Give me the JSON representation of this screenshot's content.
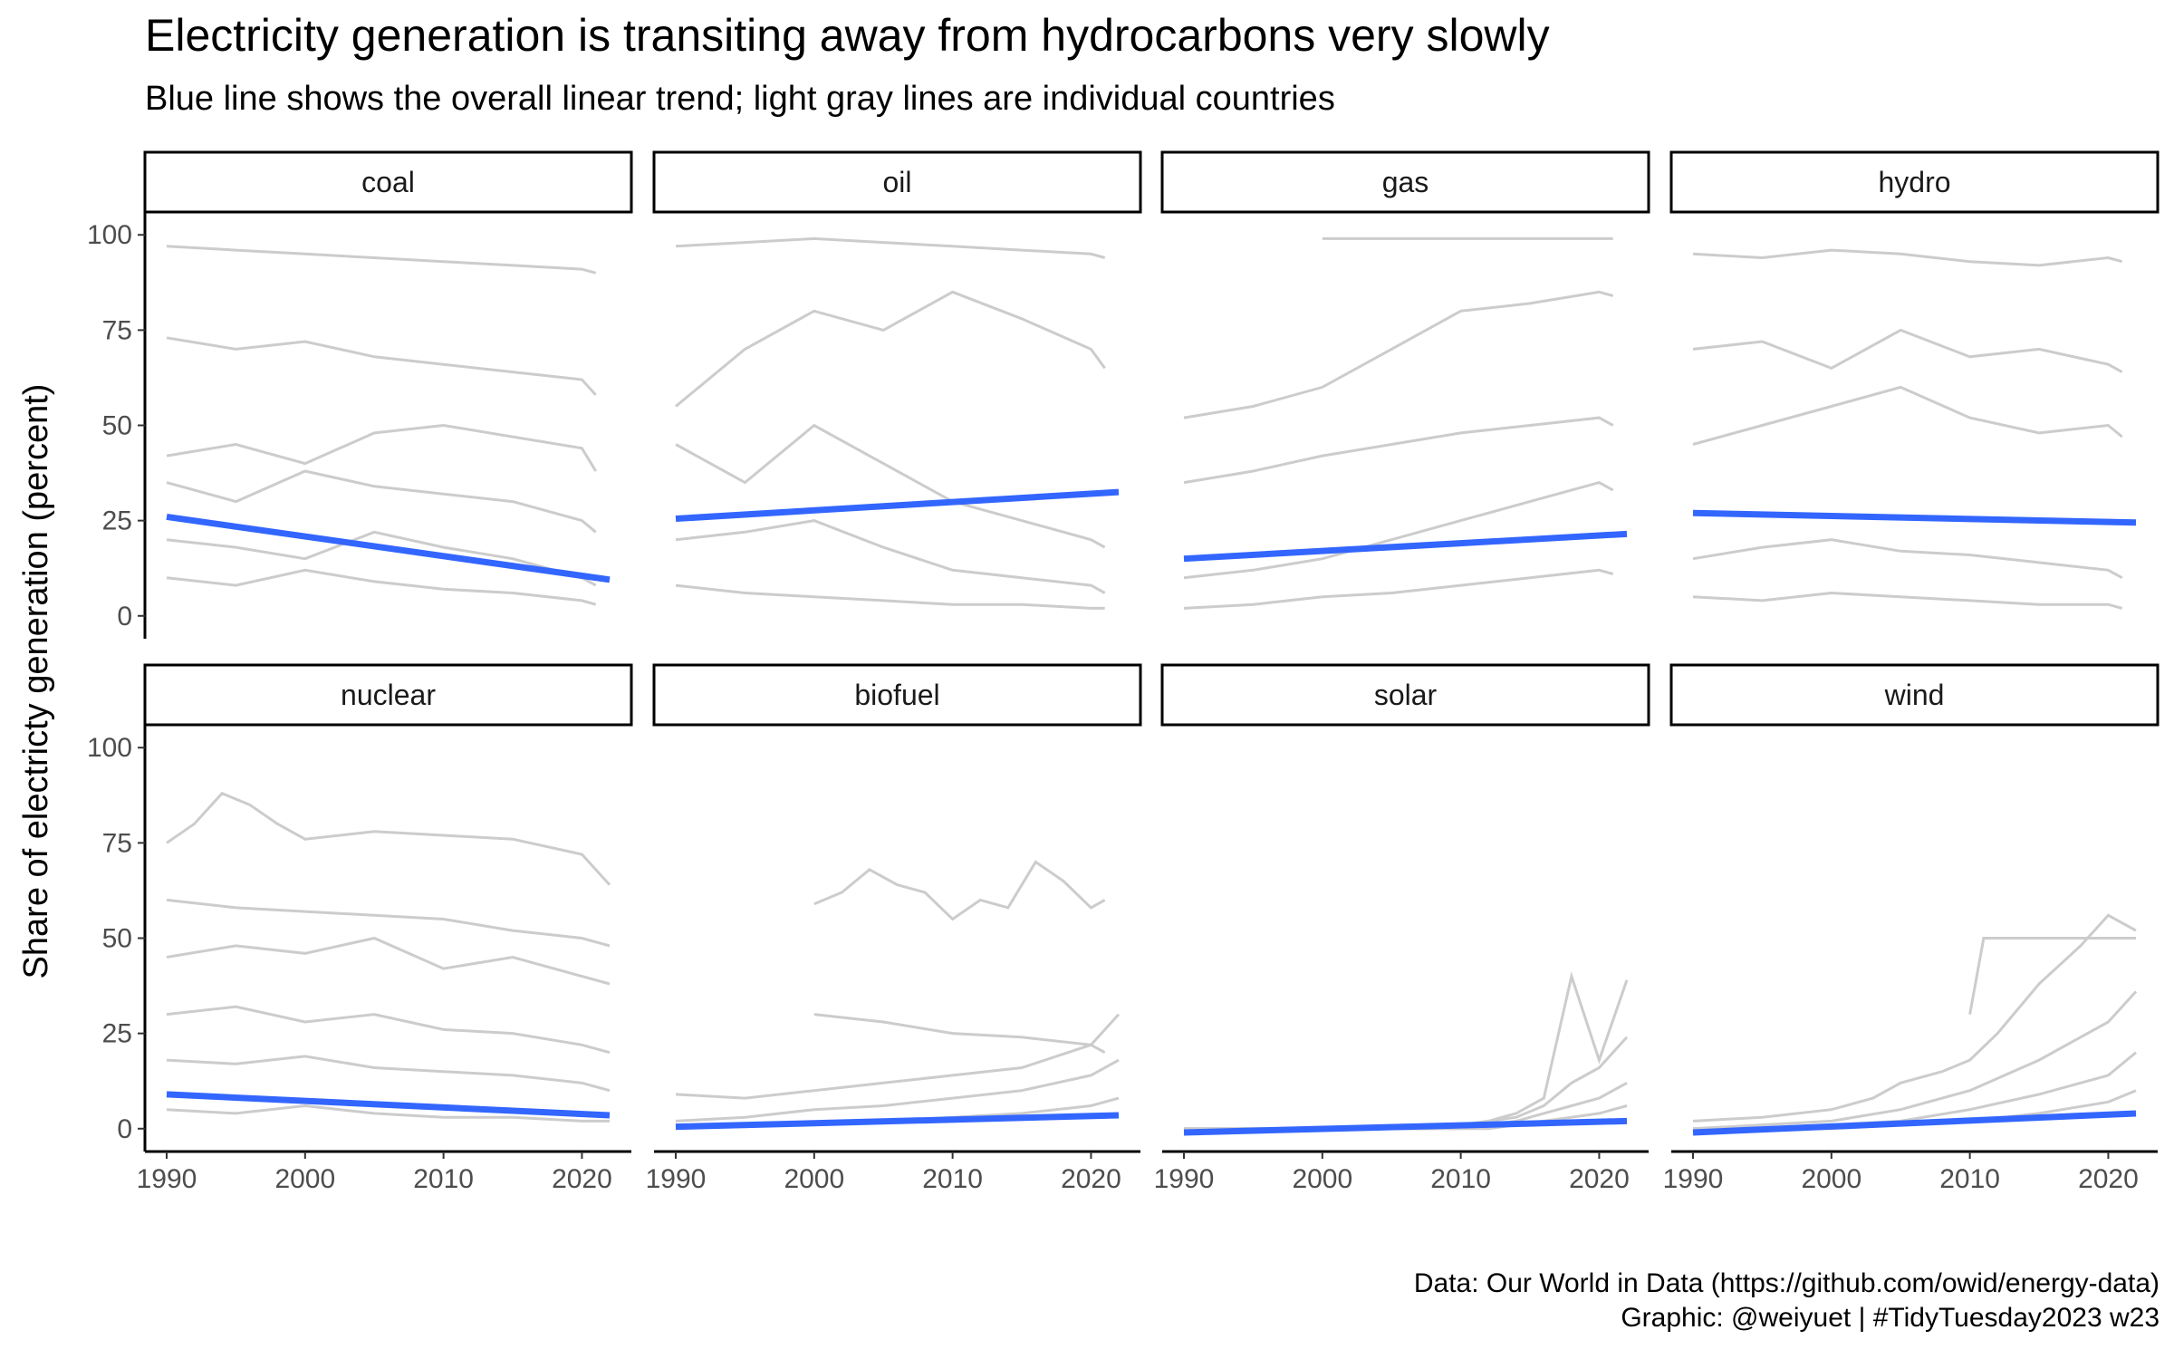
{
  "chart_data": {
    "type": "line",
    "title": "Electricity generation is transiting away from hydrocarbons very slowly",
    "subtitle": "Blue line shows the overall linear trend; light gray lines are individual countries",
    "ylabel": "Share of electricty generation (percent)",
    "xlim": [
      1990,
      2022
    ],
    "ylim": [
      0,
      100
    ],
    "x_ticks": [
      1990,
      2000,
      2010,
      2020
    ],
    "y_ticks": [
      0,
      25,
      50,
      75,
      100
    ],
    "colors": {
      "trend": "#3366FF",
      "country": "#CCCCCC",
      "strip_border": "#000000"
    },
    "panels": [
      {
        "name": "coal",
        "trend": {
          "x": [
            1990,
            2022
          ],
          "y": [
            26,
            9.5
          ]
        },
        "sample_series": [
          {
            "x": [
              1990,
              1995,
              2000,
              2005,
              2010,
              2015,
              2020,
              2021
            ],
            "y": [
              97,
              96,
              95,
              94,
              93,
              92,
              91,
              90
            ]
          },
          {
            "x": [
              1990,
              1995,
              2000,
              2005,
              2010,
              2015,
              2020,
              2021
            ],
            "y": [
              73,
              70,
              72,
              68,
              66,
              64,
              62,
              58
            ]
          },
          {
            "x": [
              1990,
              1995,
              2000,
              2005,
              2010,
              2015,
              2020,
              2021
            ],
            "y": [
              42,
              45,
              40,
              48,
              50,
              47,
              44,
              38
            ]
          },
          {
            "x": [
              1990,
              1995,
              2000,
              2005,
              2010,
              2015,
              2020,
              2021
            ],
            "y": [
              35,
              30,
              38,
              34,
              32,
              30,
              25,
              22
            ]
          },
          {
            "x": [
              1990,
              1995,
              2000,
              2005,
              2010,
              2015,
              2020,
              2021
            ],
            "y": [
              20,
              18,
              15,
              22,
              18,
              15,
              10,
              8
            ]
          },
          {
            "x": [
              1990,
              1995,
              2000,
              2005,
              2010,
              2015,
              2020,
              2021
            ],
            "y": [
              10,
              8,
              12,
              9,
              7,
              6,
              4,
              3
            ]
          }
        ]
      },
      {
        "name": "oil",
        "trend": {
          "x": [
            1990,
            2022
          ],
          "y": [
            25.5,
            32.5
          ]
        },
        "sample_series": [
          {
            "x": [
              1990,
              1995,
              2000,
              2005,
              2010,
              2015,
              2020,
              2021
            ],
            "y": [
              97,
              98,
              99,
              98,
              97,
              96,
              95,
              94
            ]
          },
          {
            "x": [
              1990,
              1995,
              2000,
              2005,
              2010,
              2015,
              2020,
              2021
            ],
            "y": [
              55,
              70,
              80,
              75,
              85,
              78,
              70,
              65
            ]
          },
          {
            "x": [
              1990,
              1995,
              2000,
              2005,
              2010,
              2015,
              2020,
              2021
            ],
            "y": [
              45,
              35,
              50,
              40,
              30,
              25,
              20,
              18
            ]
          },
          {
            "x": [
              1990,
              1995,
              2000,
              2005,
              2010,
              2015,
              2020,
              2021
            ],
            "y": [
              20,
              22,
              25,
              18,
              12,
              10,
              8,
              6
            ]
          },
          {
            "x": [
              1990,
              1995,
              2000,
              2005,
              2010,
              2015,
              2020,
              2021
            ],
            "y": [
              8,
              6,
              5,
              4,
              3,
              3,
              2,
              2
            ]
          }
        ]
      },
      {
        "name": "gas",
        "trend": {
          "x": [
            1990,
            2022
          ],
          "y": [
            15,
            21.5
          ]
        },
        "sample_series": [
          {
            "x": [
              2000,
              2005,
              2010,
              2015,
              2020,
              2021
            ],
            "y": [
              99,
              99,
              99,
              99,
              99,
              99
            ]
          },
          {
            "x": [
              1990,
              1995,
              2000,
              2005,
              2010,
              2015,
              2020,
              2021
            ],
            "y": [
              52,
              55,
              60,
              70,
              80,
              82,
              85,
              84
            ]
          },
          {
            "x": [
              1990,
              1995,
              2000,
              2005,
              2010,
              2015,
              2020,
              2021
            ],
            "y": [
              35,
              38,
              42,
              45,
              48,
              50,
              52,
              50
            ]
          },
          {
            "x": [
              1990,
              1995,
              2000,
              2005,
              2010,
              2015,
              2020,
              2021
            ],
            "y": [
              10,
              12,
              15,
              20,
              25,
              30,
              35,
              33
            ]
          },
          {
            "x": [
              1990,
              1995,
              2000,
              2005,
              2010,
              2015,
              2020,
              2021
            ],
            "y": [
              2,
              3,
              5,
              6,
              8,
              10,
              12,
              11
            ]
          }
        ]
      },
      {
        "name": "hydro",
        "trend": {
          "x": [
            1990,
            2022
          ],
          "y": [
            27,
            24.5
          ]
        },
        "sample_series": [
          {
            "x": [
              1990,
              1995,
              2000,
              2005,
              2010,
              2015,
              2020,
              2021
            ],
            "y": [
              95,
              94,
              96,
              95,
              93,
              92,
              94,
              93
            ]
          },
          {
            "x": [
              1990,
              1995,
              2000,
              2005,
              2010,
              2015,
              2020,
              2021
            ],
            "y": [
              70,
              72,
              65,
              75,
              68,
              70,
              66,
              64
            ]
          },
          {
            "x": [
              1990,
              1995,
              2000,
              2005,
              2010,
              2015,
              2020,
              2021
            ],
            "y": [
              45,
              50,
              55,
              60,
              52,
              48,
              50,
              47
            ]
          },
          {
            "x": [
              1990,
              1995,
              2000,
              2005,
              2010,
              2015,
              2020,
              2021
            ],
            "y": [
              15,
              18,
              20,
              17,
              16,
              14,
              12,
              10
            ]
          },
          {
            "x": [
              1990,
              1995,
              2000,
              2005,
              2010,
              2015,
              2020,
              2021
            ],
            "y": [
              5,
              4,
              6,
              5,
              4,
              3,
              3,
              2
            ]
          }
        ]
      },
      {
        "name": "nuclear",
        "trend": {
          "x": [
            1990,
            2022
          ],
          "y": [
            9,
            3.5
          ]
        },
        "sample_series": [
          {
            "x": [
              1990,
              1992,
              1994,
              1996,
              1998,
              2000,
              2005,
              2010,
              2015,
              2020,
              2022
            ],
            "y": [
              75,
              80,
              88,
              85,
              80,
              76,
              78,
              77,
              76,
              72,
              64
            ]
          },
          {
            "x": [
              1990,
              1995,
              2000,
              2005,
              2010,
              2015,
              2020,
              2022
            ],
            "y": [
              60,
              58,
              57,
              56,
              55,
              52,
              50,
              48
            ]
          },
          {
            "x": [
              1990,
              1995,
              2000,
              2005,
              2010,
              2015,
              2020,
              2022
            ],
            "y": [
              45,
              48,
              46,
              50,
              42,
              45,
              40,
              38
            ]
          },
          {
            "x": [
              1990,
              1995,
              2000,
              2005,
              2010,
              2015,
              2020,
              2022
            ],
            "y": [
              30,
              32,
              28,
              30,
              26,
              25,
              22,
              20
            ]
          },
          {
            "x": [
              1990,
              1995,
              2000,
              2005,
              2010,
              2015,
              2020,
              2022
            ],
            "y": [
              18,
              17,
              19,
              16,
              15,
              14,
              12,
              10
            ]
          },
          {
            "x": [
              1990,
              1995,
              2000,
              2005,
              2010,
              2015,
              2020,
              2022
            ],
            "y": [
              5,
              4,
              6,
              4,
              3,
              3,
              2,
              2
            ]
          }
        ]
      },
      {
        "name": "biofuel",
        "trend": {
          "x": [
            1990,
            2022
          ],
          "y": [
            0.5,
            3.5
          ]
        },
        "sample_series": [
          {
            "x": [
              2000,
              2002,
              2004,
              2006,
              2008,
              2010,
              2012,
              2014,
              2016,
              2018,
              2020,
              2021
            ],
            "y": [
              59,
              62,
              68,
              64,
              62,
              55,
              60,
              58,
              70,
              65,
              58,
              60
            ]
          },
          {
            "x": [
              2000,
              2005,
              2010,
              2015,
              2020,
              2021
            ],
            "y": [
              30,
              28,
              25,
              24,
              22,
              20
            ]
          },
          {
            "x": [
              1990,
              1995,
              2000,
              2005,
              2010,
              2015,
              2020,
              2022
            ],
            "y": [
              9,
              8,
              10,
              12,
              14,
              16,
              22,
              30
            ]
          },
          {
            "x": [
              1990,
              1995,
              2000,
              2005,
              2010,
              2015,
              2020,
              2022
            ],
            "y": [
              2,
              3,
              5,
              6,
              8,
              10,
              14,
              18
            ]
          },
          {
            "x": [
              1990,
              1995,
              2000,
              2005,
              2010,
              2015,
              2020,
              2022
            ],
            "y": [
              0,
              1,
              1,
              2,
              3,
              4,
              6,
              8
            ]
          }
        ]
      },
      {
        "name": "solar",
        "trend": {
          "x": [
            1990,
            2022
          ],
          "y": [
            -1,
            2
          ]
        },
        "sample_series": [
          {
            "x": [
              1990,
              2000,
              2008,
              2010,
              2012,
              2014,
              2016,
              2018,
              2020,
              2022
            ],
            "y": [
              0,
              0,
              0,
              1,
              2,
              4,
              8,
              40,
              18,
              39
            ]
          },
          {
            "x": [
              1990,
              2000,
              2008,
              2010,
              2012,
              2014,
              2016,
              2018,
              2020,
              2022
            ],
            "y": [
              0,
              0,
              0,
              1,
              2,
              3,
              6,
              12,
              16,
              24
            ]
          },
          {
            "x": [
              1990,
              2000,
              2008,
              2010,
              2012,
              2014,
              2016,
              2018,
              2020,
              2022
            ],
            "y": [
              0,
              0,
              0,
              0,
              1,
              2,
              4,
              6,
              8,
              12
            ]
          },
          {
            "x": [
              1990,
              2000,
              2008,
              2010,
              2012,
              2014,
              2016,
              2018,
              2020,
              2022
            ],
            "y": [
              0,
              0,
              0,
              0,
              0,
              1,
              2,
              3,
              4,
              6
            ]
          }
        ]
      },
      {
        "name": "wind",
        "trend": {
          "x": [
            1990,
            2022
          ],
          "y": [
            -1,
            4
          ]
        },
        "sample_series": [
          {
            "x": [
              2010,
              2011,
              2015,
              2020,
              2022
            ],
            "y": [
              30,
              50,
              50,
              50,
              50
            ]
          },
          {
            "x": [
              1990,
              1995,
              2000,
              2003,
              2005,
              2008,
              2010,
              2012,
              2015,
              2018,
              2020,
              2022
            ],
            "y": [
              2,
              3,
              5,
              8,
              12,
              15,
              18,
              25,
              38,
              48,
              56,
              52
            ]
          },
          {
            "x": [
              1990,
              1995,
              2000,
              2005,
              2010,
              2015,
              2020,
              2022
            ],
            "y": [
              0,
              1,
              2,
              5,
              10,
              18,
              28,
              36
            ]
          },
          {
            "x": [
              1990,
              1995,
              2000,
              2005,
              2010,
              2015,
              2020,
              2022
            ],
            "y": [
              0,
              0,
              1,
              2,
              5,
              9,
              14,
              20
            ]
          },
          {
            "x": [
              1990,
              1995,
              2000,
              2005,
              2010,
              2015,
              2020,
              2022
            ],
            "y": [
              0,
              0,
              0,
              1,
              2,
              4,
              7,
              10
            ]
          }
        ]
      }
    ]
  },
  "caption": {
    "line1": "Data: Our World in Data (https://github.com/owid/energy-data)",
    "line2": "Graphic: @weiyuet | #TidyTuesday2023 w23"
  }
}
